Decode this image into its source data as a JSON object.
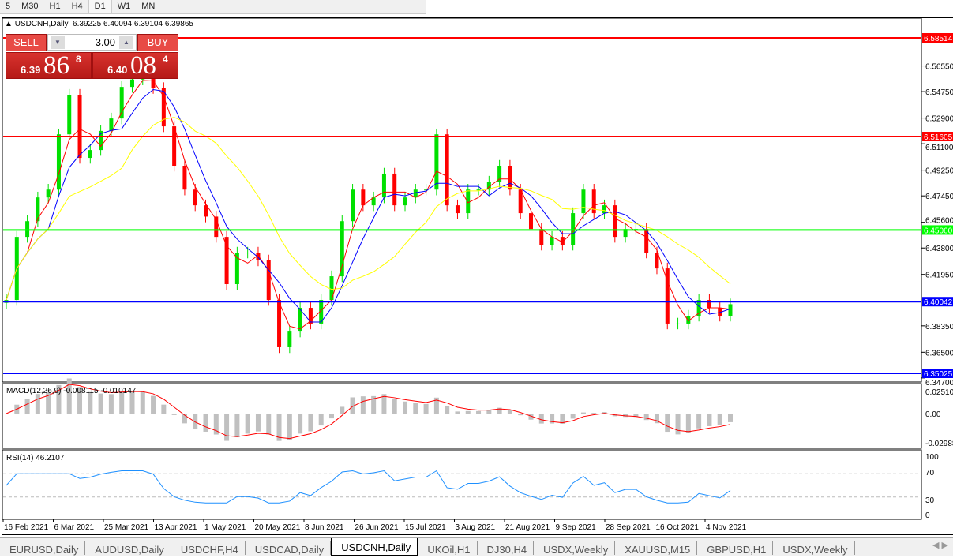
{
  "timeframes": [
    "5",
    "M30",
    "H1",
    "H4",
    "D1",
    "W1",
    "MN"
  ],
  "active_timeframe": "D1",
  "chart": {
    "symbol_line": "USDCNH,Daily",
    "ohlc": "6.39225 6.40094 6.39104 6.39865"
  },
  "trade_panel": {
    "sell_label": "SELL",
    "buy_label": "BUY",
    "volume": "3.00",
    "sell_small": "6.39",
    "sell_big": "86",
    "sell_sup": "8",
    "buy_small": "6.40",
    "buy_big": "08",
    "buy_sup": "4"
  },
  "colors": {
    "bull": "#00e000",
    "bear": "#ff0000",
    "ma_fast": "#ff0000",
    "ma_mid": "#0000ff",
    "ma_slow": "#ffff00",
    "macd_hist": "#c0c0c0",
    "macd_signal": "#ff0000",
    "rsi": "#1e90ff"
  },
  "price_axis": [
    "6.56550",
    "6.54750",
    "6.52900",
    "6.51100",
    "6.49250",
    "6.47450",
    "6.45600",
    "6.43800",
    "6.41950",
    "6.38350",
    "6.36500",
    "6.34700"
  ],
  "hlines": [
    {
      "price": 6.58514,
      "label": "6.58514",
      "color": "#ff0000"
    },
    {
      "price": 6.51605,
      "label": "6.51605",
      "color": "#ff0000"
    },
    {
      "price": 6.4506,
      "label": "6.45060",
      "color": "#00ff00"
    },
    {
      "price": 6.40042,
      "label": "6.40042",
      "color": "#0000ff"
    },
    {
      "price": 6.35025,
      "label": "6.35025",
      "color": "#0000ff"
    }
  ],
  "macd": {
    "label": "MACD(12,26,9) -0.008115 -0.010147",
    "axis": [
      "0.025108",
      "0.00",
      "-0.02988"
    ]
  },
  "rsi": {
    "label": "RSI(14) 46.2107",
    "axis": [
      "100",
      "70",
      "30",
      "0"
    ]
  },
  "date_axis": [
    "16 Feb 2021",
    "6 Mar 2021",
    "25 Mar 2021",
    "13 Apr 2021",
    "1 May 2021",
    "20 May 2021",
    "8 Jun 2021",
    "26 Jun 2021",
    "15 Jul 2021",
    "3 Aug 2021",
    "21 Aug 2021",
    "9 Sep 2021",
    "28 Sep 2021",
    "16 Oct 2021",
    "4 Nov 2021"
  ],
  "tabs": [
    "EURUSD,Daily",
    "AUDUSD,Daily",
    "USDCHF,H4",
    "USDCAD,Daily",
    "USDCNH,Daily",
    "UKOil,H1",
    "DJ30,H4",
    "USDX,Weekly",
    "XAUUSD,M15",
    "GBPUSD,H1",
    "USDX,Weekly"
  ],
  "active_tab": "USDCNH,Daily",
  "chart_data": {
    "type": "candlestick",
    "ylim": [
      6.347,
      6.59
    ],
    "closes": [
      6.4016,
      6.4458,
      6.4568,
      6.4734,
      6.4789,
      6.5176,
      6.5453,
      6.5011,
      6.5066,
      6.52,
      6.5287,
      6.5508,
      6.556,
      6.5591,
      6.55,
      6.5232,
      6.4956,
      6.4789,
      6.4679,
      6.46,
      6.4458,
      6.4127,
      6.4348,
      6.4348,
      6.4293,
      6.4016,
      6.3685,
      6.3795,
      6.3961,
      6.3851,
      6.4016,
      6.4182,
      6.4568,
      6.4789,
      6.4679,
      6.4734,
      6.4901,
      6.4679,
      6.4734,
      6.4789,
      6.4789,
      6.5176,
      6.4679,
      6.4624,
      6.4789,
      6.4789,
      6.4845,
      6.4956,
      6.4789,
      6.4624,
      6.4513,
      6.4403,
      6.4458,
      6.4403,
      6.4624,
      6.4789,
      6.4624,
      6.4679,
      6.4458,
      6.4513,
      6.4513,
      6.4348,
      6.4237,
      6.3851,
      6.3851,
      6.3906,
      6.4016,
      6.3961,
      6.3906,
      6.39865
    ]
  }
}
